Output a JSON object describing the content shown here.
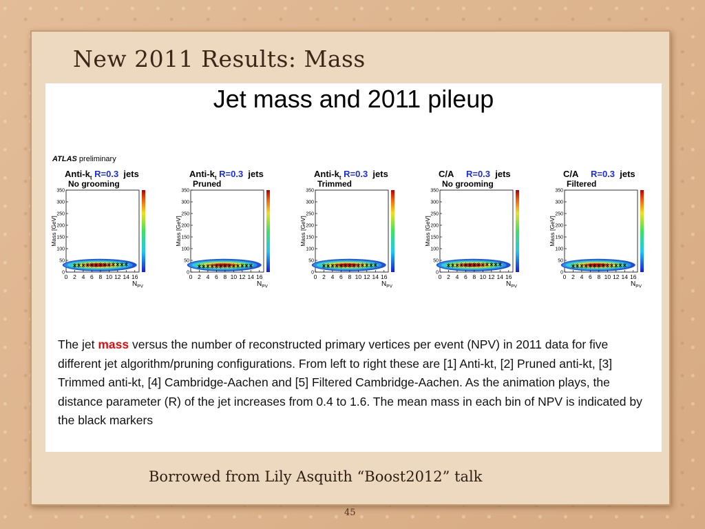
{
  "slide": {
    "title": "New 2011 Results: Mass",
    "credit": "Borrowed from Lily Asquith “Boost2012” talk",
    "page_number": "45"
  },
  "figure": {
    "heading": "Jet mass and 2011 pileup",
    "atlas_label": "ATLAS",
    "preliminary_label": "preliminary",
    "caption_before": "The jet ",
    "caption_highlight": "mass",
    "caption_after": " versus the number of reconstructed primary vertices per event (NPV) in 2011 data for five different jet algorithm/pruning configurations. From left to right these are [1] Anti-kt, [2] Pruned anti-kt, [3] Trimmed anti-kt, [4] Cambridge-Aachen and [5] Filtered Cambridge-Aachen. As the animation plays, the distance parameter (R) of the jet increases from 0.4 to 1.6. The mean mass in each bin of NPV is indicated by the black markers"
  },
  "chart_data": [
    {
      "type": "heatmap",
      "algo": "Anti-k",
      "algo_sub": "t",
      "radius": "R=0.3",
      "suffix": "jets",
      "grooming": "No grooming",
      "xlabel": "N",
      "xlabel_sub": "PV",
      "ylabel": "Mass [GeV]",
      "xlim": [
        0,
        17
      ],
      "ylim": [
        0,
        350
      ],
      "xticks": [
        0,
        2,
        4,
        6,
        8,
        10,
        12,
        14,
        16
      ],
      "yticks": [
        0,
        50,
        100,
        150,
        200,
        250,
        300,
        350
      ],
      "mean_x": [
        2,
        3,
        4,
        5,
        6,
        7,
        8,
        9,
        10,
        11,
        12,
        13,
        14
      ],
      "mean_y": [
        28,
        29,
        29,
        30,
        30,
        30,
        31,
        31,
        31,
        32,
        32,
        32,
        33
      ]
    },
    {
      "type": "heatmap",
      "algo": "Anti-k",
      "algo_sub": "t",
      "radius": "R=0.3",
      "suffix": "jets",
      "grooming": "Pruned",
      "xlabel": "N",
      "xlabel_sub": "PV",
      "ylabel": "Mass [GeV]",
      "xlim": [
        0,
        17
      ],
      "ylim": [
        0,
        350
      ],
      "xticks": [
        0,
        2,
        4,
        6,
        8,
        10,
        12,
        14,
        16
      ],
      "yticks": [
        0,
        50,
        100,
        150,
        200,
        250,
        300,
        350
      ],
      "mean_x": [
        2,
        3,
        4,
        5,
        6,
        7,
        8,
        9,
        10,
        11,
        12,
        13,
        14
      ],
      "mean_y": [
        24,
        24,
        25,
        25,
        25,
        25,
        26,
        26,
        26,
        26,
        27,
        27,
        27
      ]
    },
    {
      "type": "heatmap",
      "algo": "Anti-k",
      "algo_sub": "t",
      "radius": "R=0.3",
      "suffix": "jets",
      "grooming": "Trimmed",
      "xlabel": "N",
      "xlabel_sub": "PV",
      "ylabel": "Mass [GeV]",
      "xlim": [
        0,
        17
      ],
      "ylim": [
        0,
        350
      ],
      "xticks": [
        0,
        2,
        4,
        6,
        8,
        10,
        12,
        14,
        16
      ],
      "yticks": [
        0,
        50,
        100,
        150,
        200,
        250,
        300,
        350
      ],
      "mean_x": [
        2,
        3,
        4,
        5,
        6,
        7,
        8,
        9,
        10,
        11,
        12,
        13,
        14
      ],
      "mean_y": [
        26,
        26,
        27,
        27,
        27,
        28,
        28,
        28,
        28,
        29,
        29,
        29,
        30
      ]
    },
    {
      "type": "heatmap",
      "algo": "C/A",
      "algo_sub": "",
      "radius": "R=0.3",
      "suffix": "jets",
      "grooming": "No grooming",
      "xlabel": "N",
      "xlabel_sub": "PV",
      "ylabel": "Mass [GeV]",
      "xlim": [
        0,
        17
      ],
      "ylim": [
        0,
        350
      ],
      "xticks": [
        0,
        2,
        4,
        6,
        8,
        10,
        12,
        14,
        16
      ],
      "yticks": [
        0,
        50,
        100,
        150,
        200,
        250,
        300,
        350
      ],
      "mean_x": [
        2,
        3,
        4,
        5,
        6,
        7,
        8,
        9,
        10,
        11,
        12,
        13,
        14
      ],
      "mean_y": [
        28,
        29,
        29,
        30,
        30,
        30,
        31,
        31,
        31,
        32,
        32,
        32,
        33
      ]
    },
    {
      "type": "heatmap",
      "algo": "C/A",
      "algo_sub": "",
      "radius": "R=0.3",
      "suffix": "jets",
      "grooming": "Filtered",
      "xlabel": "N",
      "xlabel_sub": "PV",
      "ylabel": "Mass [GeV]",
      "xlim": [
        0,
        17
      ],
      "ylim": [
        0,
        350
      ],
      "xticks": [
        0,
        2,
        4,
        6,
        8,
        10,
        12,
        14,
        16
      ],
      "yticks": [
        0,
        50,
        100,
        150,
        200,
        250,
        300,
        350
      ],
      "mean_x": [
        2,
        3,
        4,
        5,
        6,
        7,
        8,
        9,
        10,
        11,
        12,
        13,
        14
      ],
      "mean_y": [
        25,
        26,
        26,
        26,
        27,
        27,
        27,
        28,
        28,
        28,
        28,
        29,
        29
      ]
    }
  ]
}
